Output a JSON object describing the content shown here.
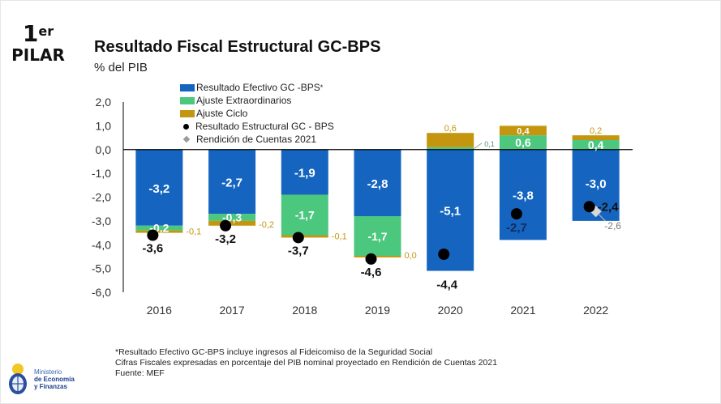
{
  "header": {
    "pilar_number": "1",
    "pilar_suffix": "er",
    "pilar_word": "PILAR",
    "title": "Resultado Fiscal Estructural GC-BPS",
    "subtitle": "% del PIB"
  },
  "colors": {
    "efectivo": "#1565C0",
    "extraordinarios": "#4CC77E",
    "ciclo": "#C4960F",
    "estructural": "#000000",
    "rendicion": "#9A9A9A"
  },
  "legend": {
    "items": [
      {
        "label": "Resultado Efectivo GC -BPS",
        "sup": "*",
        "type": "swatch",
        "color_key": "efectivo"
      },
      {
        "label": "Ajuste Extraordinarios",
        "type": "swatch",
        "color_key": "extraordinarios"
      },
      {
        "label": "Ajuste Ciclo",
        "type": "swatch",
        "color_key": "ciclo"
      },
      {
        "label": "Resultado Estructural GC - BPS",
        "type": "dot"
      },
      {
        "label": "Rendición de Cuentas 2021",
        "type": "diamond"
      }
    ]
  },
  "chart_data": {
    "type": "bar",
    "title": "Resultado Fiscal Estructural GC-BPS",
    "subtitle": "% del PIB",
    "xlabel": "",
    "ylabel": "% del PIB",
    "ylim": [
      -6.0,
      2.0
    ],
    "yticks": [
      "2,0",
      "1,0",
      "0,0",
      "-1,0",
      "-2,0",
      "-3,0",
      "-4,0",
      "-5,0",
      "-6,0"
    ],
    "ytick_values": [
      2,
      1,
      0,
      -1,
      -2,
      -3,
      -4,
      -5,
      -6
    ],
    "grid": false,
    "legend_position": "top-center",
    "stacked": true,
    "categories": [
      "2016",
      "2017",
      "2018",
      "2019",
      "2020",
      "2021",
      "2022"
    ],
    "series": [
      {
        "name": "Resultado Efectivo GC -BPS*",
        "kind": "bar",
        "color_key": "efectivo",
        "values": [
          -3.2,
          -2.7,
          -1.9,
          -2.8,
          -5.1,
          -3.8,
          -3.0
        ],
        "labels": [
          "-3,2",
          "-2,7",
          "-1,9",
          "-2,8",
          "-5,1",
          "-3,8",
          "-3,0"
        ]
      },
      {
        "name": "Ajuste Extraordinarios",
        "kind": "bar",
        "color_key": "extraordinarios",
        "values": [
          -0.2,
          -0.3,
          -1.7,
          -1.7,
          0.1,
          0.6,
          0.4
        ],
        "labels": [
          "-0,2",
          "-0,3",
          "-1,7",
          "-1,7",
          "0,1",
          "0,6",
          "0,4"
        ]
      },
      {
        "name": "Ajuste Ciclo",
        "kind": "bar",
        "color_key": "ciclo",
        "values": [
          -0.1,
          -0.2,
          -0.1,
          0.0,
          0.6,
          0.4,
          0.2
        ],
        "labels": [
          "-0,1",
          "-0,2",
          "-0,1",
          "0,0",
          "0,6",
          "0,4",
          "0,2"
        ]
      },
      {
        "name": "Resultado Estructural GC - BPS",
        "kind": "dot",
        "values": [
          -3.6,
          -3.2,
          -3.7,
          -4.6,
          -4.4,
          -2.7,
          -2.4
        ],
        "labels": [
          "-3,6",
          "-3,2",
          "-3,7",
          "-4,6",
          "-4,4",
          "-2,7",
          "-2,4"
        ]
      },
      {
        "name": "Rendición de Cuentas 2021",
        "kind": "diamond",
        "values": [
          null,
          null,
          null,
          null,
          null,
          null,
          -2.6
        ],
        "labels": [
          null,
          null,
          null,
          null,
          null,
          null,
          "-2,6"
        ]
      }
    ]
  },
  "footnotes": [
    "*Resultado Efectivo GC-BPS incluye ingresos al Fideicomiso de la Seguridad Social",
    "Cifras Fiscales expresadas en porcentaje del PIB nominal proyectado en Rendición de Cuentas 2021",
    "Fuente: MEF"
  ],
  "logo": {
    "line1": "Ministerio",
    "line2": "de Economía",
    "line3": "y Finanzas"
  }
}
